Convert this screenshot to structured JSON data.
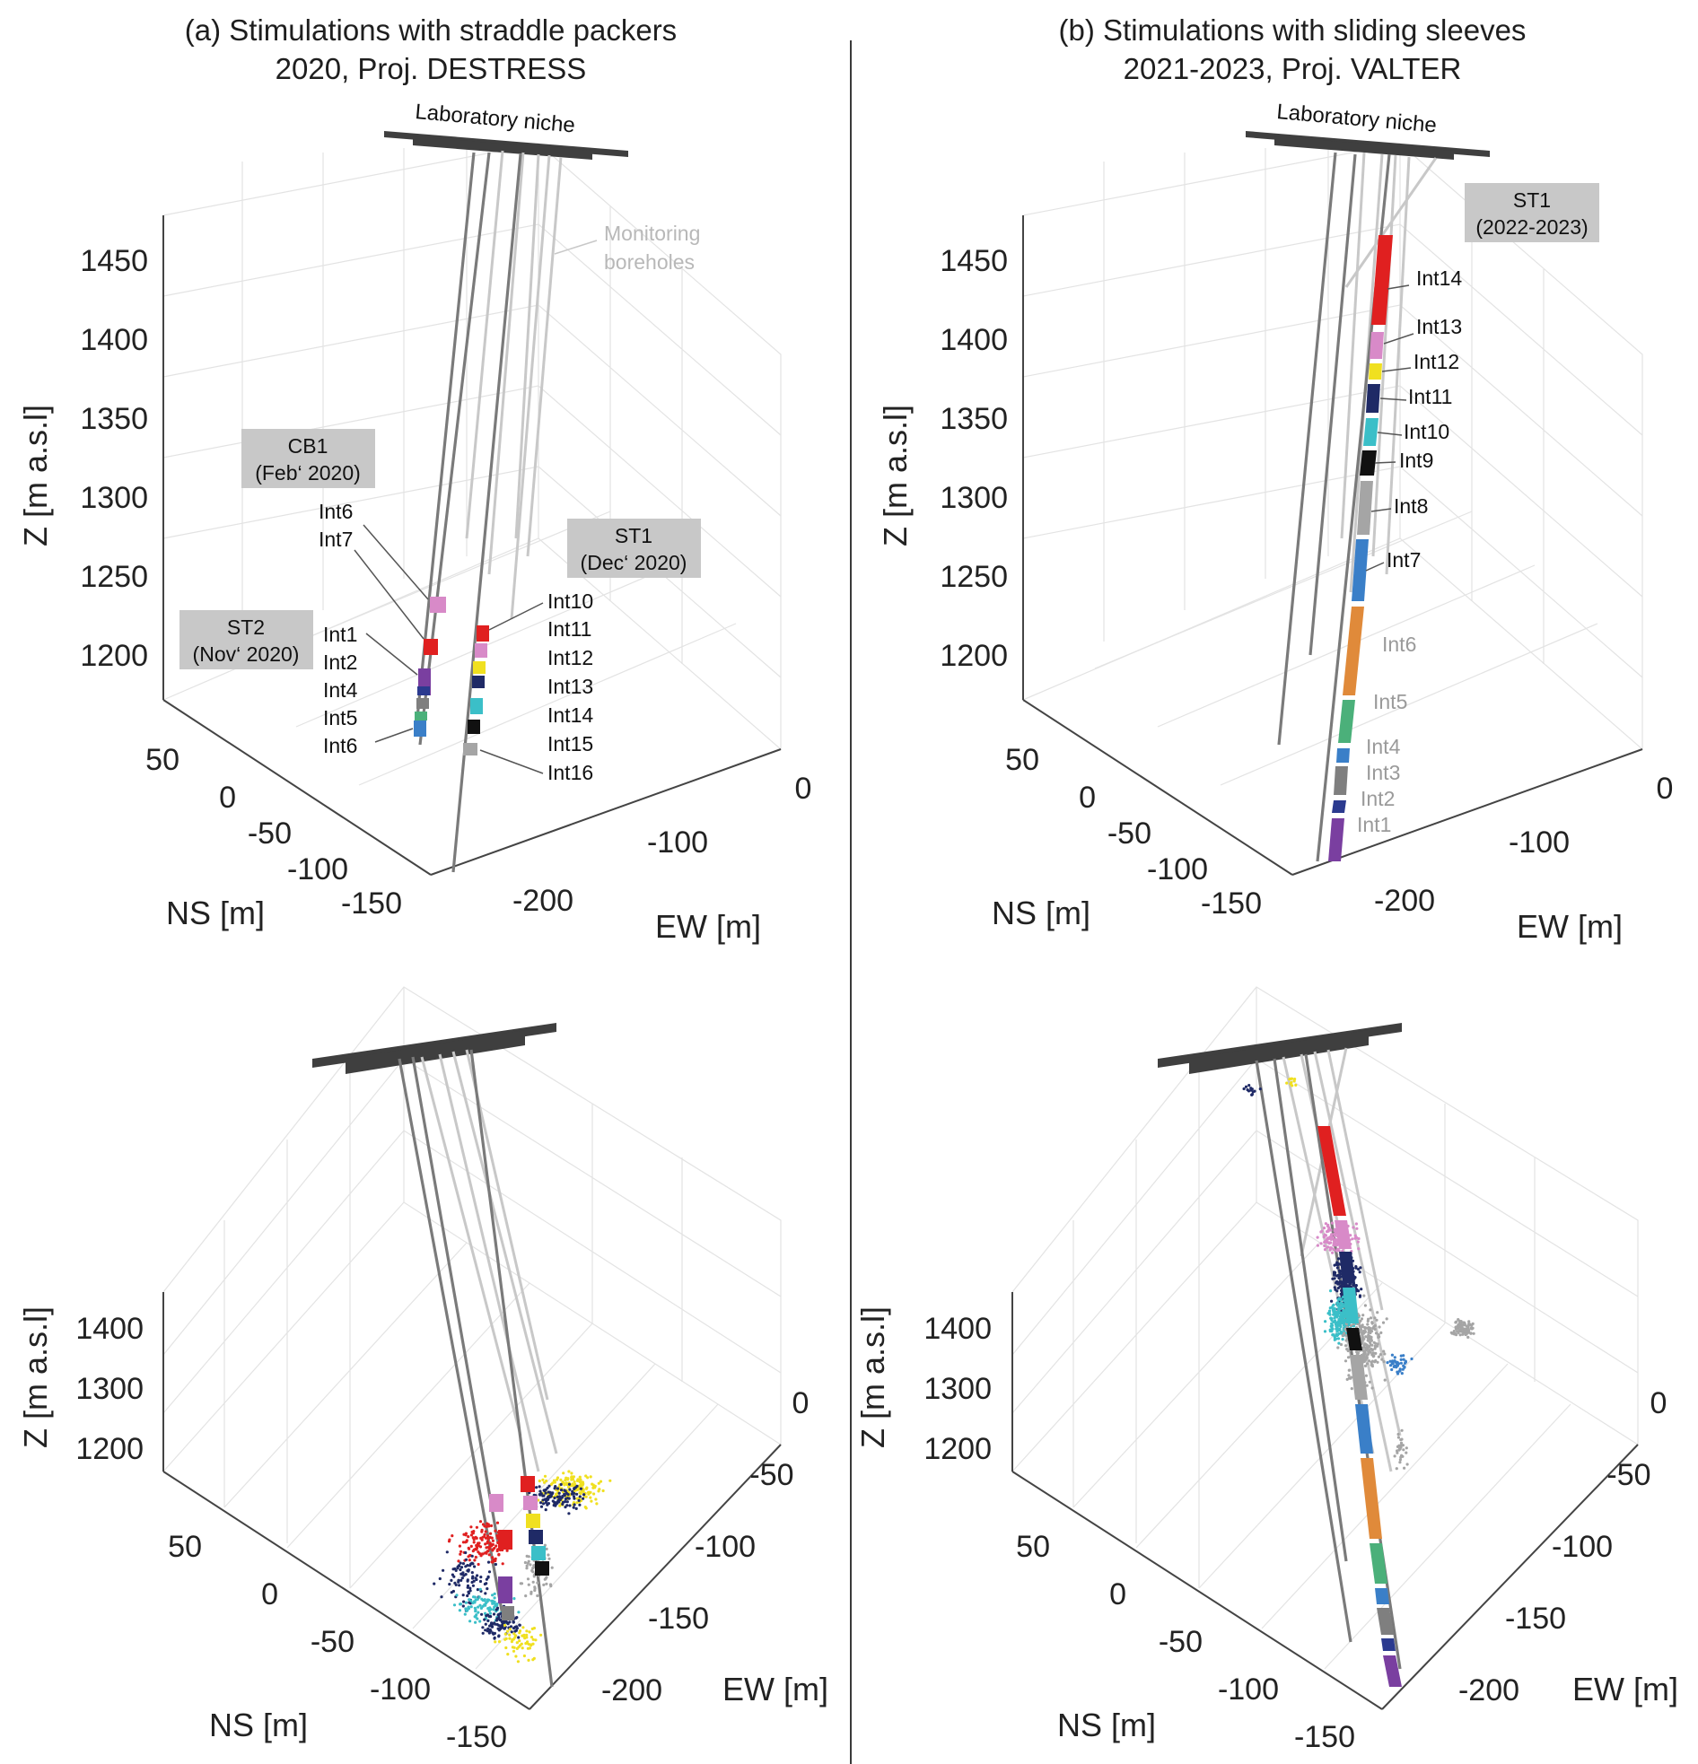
{
  "panels": {
    "a": {
      "title_line1": "(a) Stimulations with straddle packers",
      "title_line2": "2020, Proj. DESTRESS",
      "niche_label": "Laboratory niche",
      "monitoring_label_1": "Monitoring",
      "monitoring_label_2": "boreholes",
      "boxes": [
        {
          "line1": "CB1",
          "line2": "(Feb‘ 2020)"
        },
        {
          "line1": "ST2",
          "line2": "(Nov‘ 2020)"
        },
        {
          "line1": "ST1",
          "line2": "(Dec‘ 2020)"
        }
      ],
      "cb1_labels": [
        "Int6",
        "Int7"
      ],
      "st2_labels": [
        "Int1",
        "Int2",
        "Int4",
        "Int5",
        "Int6"
      ],
      "st1_labels": [
        "Int10",
        "Int11",
        "Int12",
        "Int13",
        "Int14",
        "Int15",
        "Int16"
      ]
    },
    "b": {
      "title_line1": "(b) Stimulations with sliding sleeves",
      "title_line2": "2021-2023, Proj. VALTER",
      "niche_label": "Laboratory niche",
      "box": {
        "line1": "ST1",
        "line2": "(2022-2023)"
      },
      "labels_black": [
        "Int14",
        "Int13",
        "Int12",
        "Int11",
        "Int10",
        "Int9",
        "Int8",
        "Int7"
      ],
      "labels_grey": [
        "Int6",
        "Int5",
        "Int4",
        "Int3",
        "Int2",
        "Int1"
      ]
    }
  },
  "axes": {
    "z_label": "Z [m a.s.l]",
    "ns_label": "NS [m]",
    "ew_label": "EW [m]",
    "top_z_ticks": [
      "1450",
      "1400",
      "1350",
      "1300",
      "1250",
      "1200"
    ],
    "top_ns_ticks": [
      "50",
      "0",
      "-50",
      "-100",
      "-150"
    ],
    "top_ew_ticks": [
      "0",
      "-100",
      "-200"
    ],
    "bottom_z_ticks": [
      "1400",
      "1300",
      "1200"
    ],
    "bottom_ns_ticks": [
      "50",
      "0",
      "-50",
      "-100",
      "-150"
    ],
    "bottom_ew_ticks": [
      "0",
      "-50",
      "-100",
      "-150",
      "-200"
    ]
  },
  "colors": {
    "Int1": "#7a3fa0",
    "Int2": "#2b3a8f",
    "Int3": "#7f7f7f",
    "Int4": "#3a7fc8",
    "Int5": "#4bb07a",
    "Int6": "#e08a3a",
    "Int7": "#3a7fc8",
    "Int8": "#a5a5a5",
    "Int9": "#111111",
    "Int10": "#3bbfc8",
    "Int11": "#1f2a66",
    "Int12": "#f0e020",
    "Int13": "#d88ac8",
    "Int14": "#e02020",
    "borehole": "#7a7a7a",
    "monitoring": "#c8c8c8",
    "niche": "#3f3f3f",
    "box": "#c8c8c8"
  }
}
